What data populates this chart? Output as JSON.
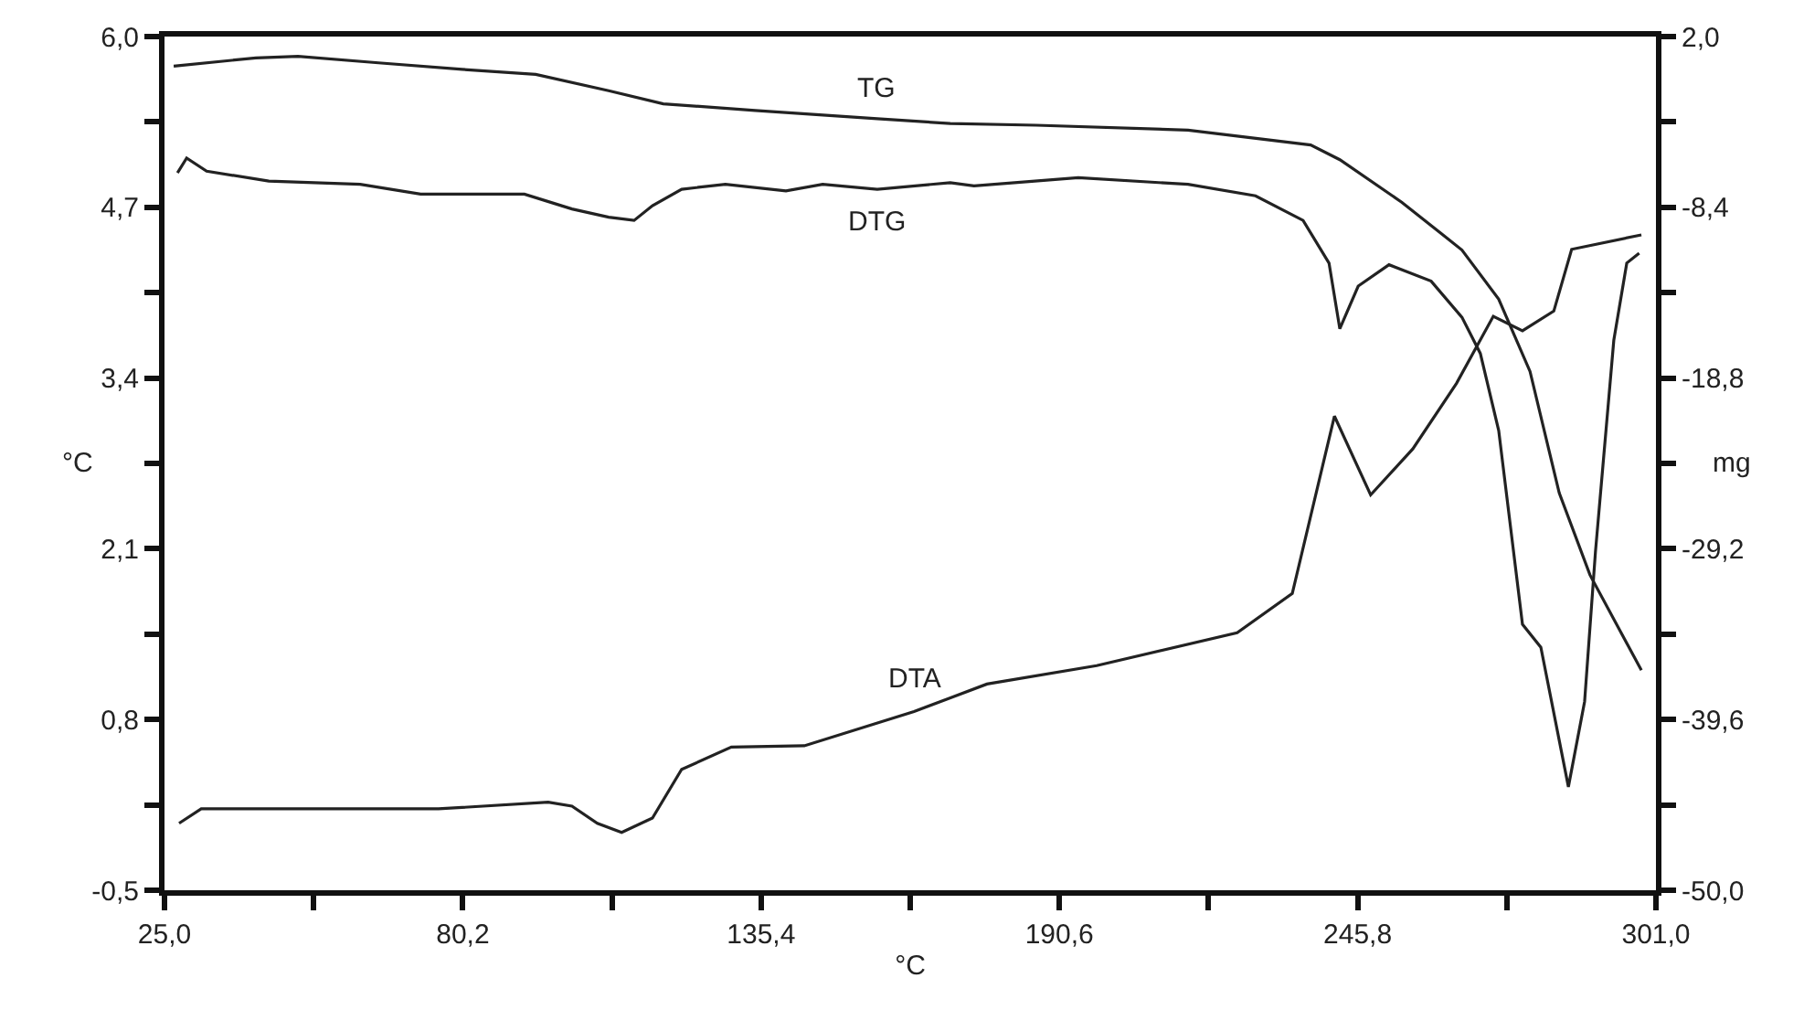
{
  "chart_data": {
    "type": "line",
    "xlabel": "°C",
    "ylabel": "°C",
    "y2label": "mg",
    "series": [
      {
        "name": "TG",
        "color": "#222222",
        "axis": "y2",
        "x": [
          26.7,
          41.9,
          49.7,
          64.6,
          80.1,
          93.7,
          107.2,
          117.3,
          134.3,
          156.9,
          170.4,
          186.3,
          214.4,
          237.1,
          242.5,
          254.0,
          265.1,
          271.9,
          277.7,
          283.1,
          288.8,
          298.3
        ],
        "values": [
          0.2,
          0.7,
          0.8,
          0.4,
          0.0,
          -0.3,
          -1.3,
          -2.1,
          -2.5,
          -3.0,
          -3.3,
          -3.4,
          -3.7,
          -4.6,
          -5.5,
          -8.1,
          -11.0,
          -14.0,
          -18.4,
          -25.8,
          -30.8,
          -36.6
        ]
      },
      {
        "name": "DTG",
        "color": "#222222",
        "axis": "y2",
        "x": [
          27.4,
          29.1,
          32.8,
          44.3,
          61.2,
          72.4,
          91.6,
          100.4,
          107.2,
          111.9,
          115.3,
          120.7,
          128.8,
          140.0,
          146.8,
          156.9,
          170.4,
          174.8,
          194.1,
          214.4,
          226.9,
          235.7,
          240.5,
          242.5,
          245.9,
          251.6,
          259.4,
          265.1,
          268.5,
          271.9,
          276.3,
          279.7,
          284.8,
          287.8,
          289.8,
          292.2,
          293.2,
          295.6,
          297.9
        ],
        "values": [
          -6.3,
          -5.4,
          -6.2,
          -6.8,
          -7.0,
          -7.6,
          -7.6,
          -8.5,
          -9.0,
          -9.2,
          -8.3,
          -7.3,
          -7.0,
          -7.4,
          -7.0,
          -7.3,
          -6.9,
          -7.1,
          -6.6,
          -7.0,
          -7.7,
          -9.2,
          -11.8,
          -15.8,
          -13.2,
          -11.9,
          -12.9,
          -15.1,
          -17.3,
          -22.0,
          -33.8,
          -35.2,
          -43.7,
          -38.5,
          -29.4,
          -20.3,
          -16.5,
          -11.8,
          -11.2
        ]
      },
      {
        "name": "DTA",
        "color": "#222222",
        "axis": "y",
        "x": [
          27.7,
          31.8,
          51.0,
          75.7,
          96.0,
          100.4,
          105.1,
          109.6,
          115.3,
          120.7,
          129.9,
          143.4,
          163.7,
          177.2,
          197.5,
          223.5,
          233.7,
          241.5,
          248.2,
          256.0,
          264.1,
          270.9,
          276.3,
          282.1,
          285.4,
          298.3
        ],
        "values": [
          0.01,
          0.12,
          0.12,
          0.12,
          0.17,
          0.14,
          0.01,
          -0.06,
          0.05,
          0.42,
          0.59,
          0.6,
          0.86,
          1.07,
          1.21,
          1.46,
          1.76,
          3.11,
          2.51,
          2.86,
          3.36,
          3.87,
          3.76,
          3.91,
          4.38,
          4.49
        ]
      }
    ],
    "xlim": [
      25.0,
      301.0
    ],
    "xticks": [
      {
        "value": 25.0,
        "label": "25,0"
      },
      {
        "value": 52.6,
        "label": null
      },
      {
        "value": 80.2,
        "label": "80,2"
      },
      {
        "value": 107.8,
        "label": null
      },
      {
        "value": 135.4,
        "label": "135,4"
      },
      {
        "value": 163.0,
        "label": null
      },
      {
        "value": 190.6,
        "label": "190,6"
      },
      {
        "value": 218.2,
        "label": null
      },
      {
        "value": 245.8,
        "label": "245,8"
      },
      {
        "value": 273.4,
        "label": null
      },
      {
        "value": 301.0,
        "label": "301,0"
      }
    ],
    "ylim": [
      -0.5,
      6.0
    ],
    "yticks": [
      {
        "value": -0.5,
        "label": "-0,5"
      },
      {
        "value": 0.15,
        "label": null
      },
      {
        "value": 0.8,
        "label": "0,8"
      },
      {
        "value": 1.45,
        "label": null
      },
      {
        "value": 2.1,
        "label": "2,1"
      },
      {
        "value": 2.75,
        "label": null
      },
      {
        "value": 3.4,
        "label": "3,4"
      },
      {
        "value": 4.05,
        "label": null
      },
      {
        "value": 4.7,
        "label": "4,7"
      },
      {
        "value": 5.35,
        "label": null
      },
      {
        "value": 6.0,
        "label": "6,0"
      }
    ],
    "y2lim": [
      -50.0,
      2.0
    ],
    "y2ticks": [
      {
        "value": -50.0,
        "label": "-50,0"
      },
      {
        "value": -44.8,
        "label": null
      },
      {
        "value": -39.6,
        "label": "-39,6"
      },
      {
        "value": -34.4,
        "label": null
      },
      {
        "value": -29.2,
        "label": "-29,2"
      },
      {
        "value": -24.0,
        "label": null
      },
      {
        "value": -18.8,
        "label": "-18,8"
      },
      {
        "value": -13.6,
        "label": null
      },
      {
        "value": -8.4,
        "label": "-8,4"
      },
      {
        "value": -3.2,
        "label": null
      },
      {
        "value": 2.0,
        "label": "2,0"
      }
    ],
    "legend": false,
    "marker": "none",
    "line_style": "solid"
  }
}
